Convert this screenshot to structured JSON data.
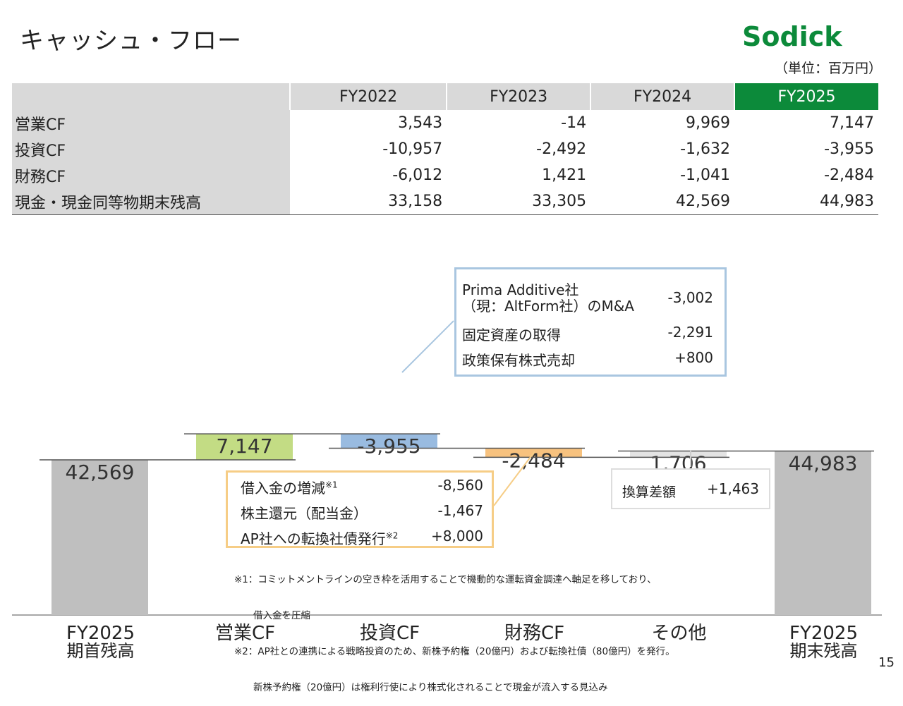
{
  "title": "キャッシュ・フロー",
  "logo": "Sodick",
  "unit": "（単位：百万円）",
  "page_number": "15",
  "colors": {
    "brand_green": "#0c8a3a",
    "header_gray": "#d9d9d9",
    "blue_box_border": "#a9c6e0",
    "orange_box_border": "#f6cd86"
  },
  "table": {
    "columns": [
      "FY2022",
      "FY2023",
      "FY2024",
      "FY2025"
    ],
    "rows": [
      {
        "label": "営業CF",
        "values": [
          "3,543",
          "-14",
          "9,969",
          "7,147"
        ]
      },
      {
        "label": "投資CF",
        "values": [
          "-10,957",
          "-2,492",
          "-1,632",
          "-3,955"
        ]
      },
      {
        "label": "財務CF",
        "values": [
          "-6,012",
          "1,421",
          "-1,041",
          "-2,484"
        ]
      },
      {
        "label": "現金・現金同等物期末残高",
        "values": [
          "33,158",
          "33,305",
          "42,569",
          "44,983"
        ]
      }
    ]
  },
  "chart_data": {
    "type": "waterfall",
    "categories": [
      "FY2025\n期首残高",
      "営業CF",
      "投資CF",
      "財務CF",
      "その他",
      "FY2025\n期末残高"
    ],
    "values": [
      42569,
      7147,
      -3955,
      -2484,
      1706,
      44983
    ],
    "data_labels": [
      "42,569",
      "7,147",
      "-3,955",
      "-2,484",
      "1,706",
      "44,983"
    ],
    "bar_colors": [
      "#bfbfbf",
      "#c3dc84",
      "#99bbe0",
      "#f7c27f",
      "#e3e3e3",
      "#bfbfbf"
    ],
    "ylim": [
      0,
      50000
    ],
    "grid": false,
    "legend": "none"
  },
  "callout_investing": {
    "rows": [
      {
        "label_line1": "Prima Additive社",
        "label_line2": "（現：AltForm社）のM&A",
        "value": "-3,002"
      },
      {
        "label": "固定資産の取得",
        "value": "-2,291"
      },
      {
        "label": "政策保有株式売却",
        "value": "+800"
      }
    ]
  },
  "callout_financing": {
    "rows": [
      {
        "label": "借入金の増減",
        "sup": "※1",
        "value": "-8,560"
      },
      {
        "label": "株主還元（配当金）",
        "value": "-1,467"
      },
      {
        "label": "AP社への転換社債発行",
        "sup": "※2",
        "value": "+8,000"
      }
    ]
  },
  "callout_other": {
    "label": "換算差額",
    "value": "+1,463"
  },
  "notes": [
    "※1：コミットメントラインの空き枠を活用することで機動的な運転資金調達へ軸足を移しており、",
    "　　借入金を圧縮",
    "※2：AP社との連携による戦略投資のため、新株予約権（20億円）および転換社債（80億円）を発行。",
    "　　新株予約権（20億円）は権利行使により株式化されることで現金が流入する見込み"
  ]
}
